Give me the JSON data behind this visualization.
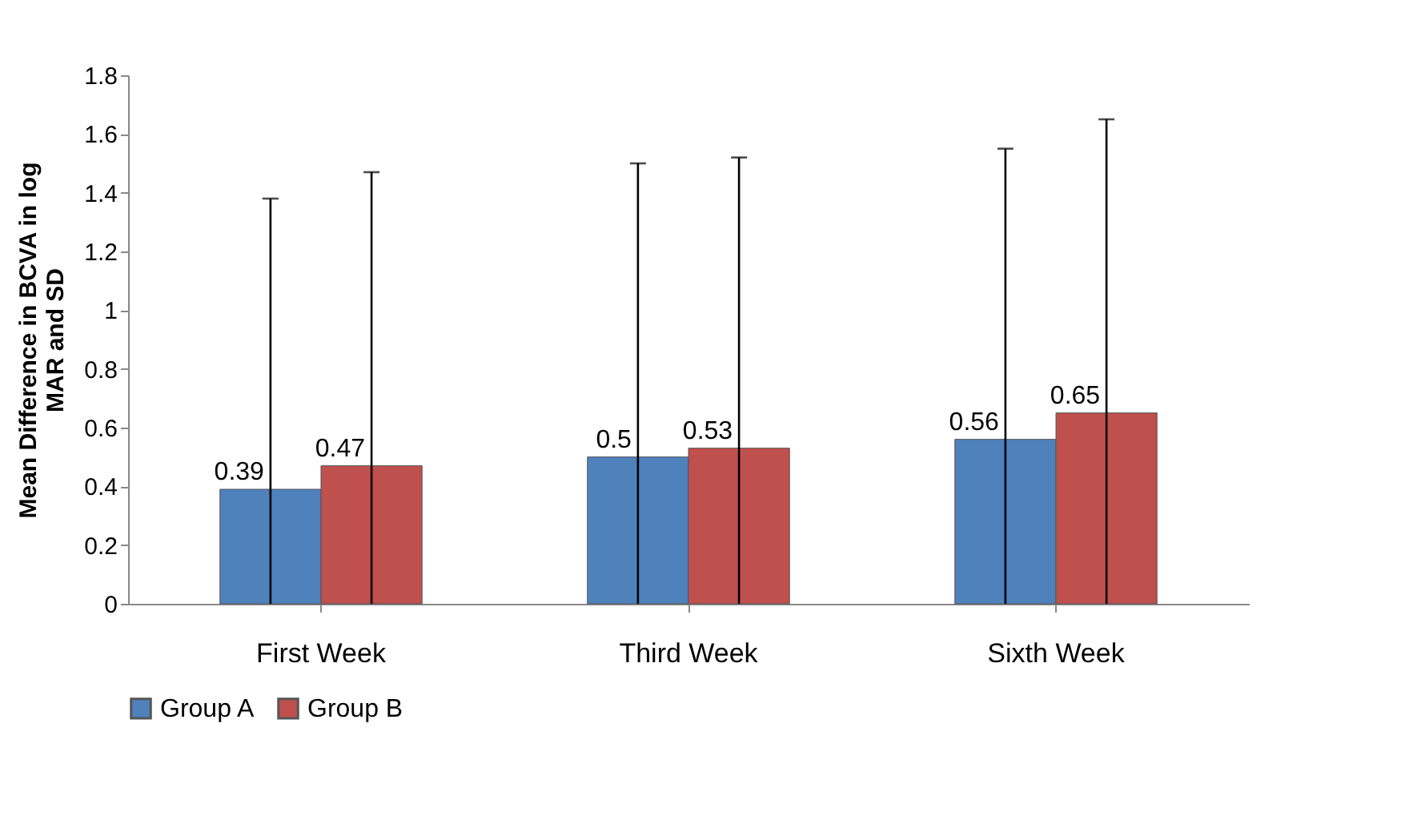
{
  "chart_data": {
    "type": "bar",
    "ylabel": "Mean Difference in BCVA in log MAR and SD",
    "categories": [
      "First Week",
      "Third Week",
      "Sixth Week"
    ],
    "series": [
      {
        "name": "Group A",
        "color": "#4f81bd",
        "values": [
          0.39,
          0.5,
          0.56
        ],
        "errors": [
          [
            0,
            1.38
          ],
          [
            0,
            1.5
          ],
          [
            0,
            1.55
          ]
        ]
      },
      {
        "name": "Group B",
        "color": "#c0504d",
        "values": [
          0.47,
          0.53,
          0.65
        ],
        "errors": [
          [
            0,
            1.47
          ],
          [
            0,
            1.52
          ],
          [
            0,
            1.65
          ]
        ]
      }
    ],
    "ylim": [
      0,
      1.8
    ],
    "yticks": [
      0,
      0.2,
      0.4,
      0.6,
      0.8,
      1,
      1.2,
      1.4,
      1.6,
      1.8
    ],
    "grid": false,
    "legend": "bottom",
    "data_labels": true
  }
}
